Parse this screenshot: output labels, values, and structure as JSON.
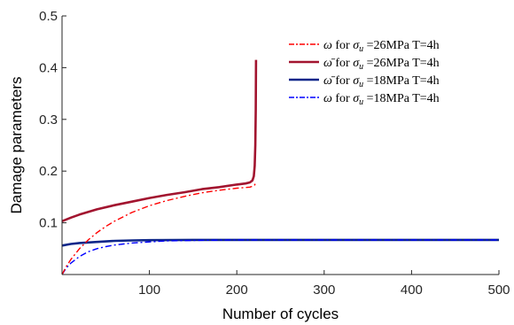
{
  "chart_data": {
    "type": "line",
    "title": "",
    "xlabel": "Number of cycles",
    "ylabel": "Damage parameters",
    "xlim": [
      0,
      500
    ],
    "ylim": [
      0,
      0.5
    ],
    "xticks": [
      100,
      200,
      300,
      400,
      500
    ],
    "yticks": [
      0.1,
      0.2,
      0.3,
      0.4,
      0.5
    ],
    "grid": false,
    "legend_position": "top-right",
    "series": [
      {
        "name": "ω for σ_u =26MPa T=4h",
        "legend_text": {
          "sym": "ω",
          "mid": " for ",
          "sigma": "σ",
          "sub": "u",
          "rest": " =26MPa T=4h"
        },
        "color": "#ff0000",
        "dash": "dashdot",
        "width": 1.4,
        "x": [
          0,
          5,
          10,
          20,
          30,
          40,
          50,
          60,
          80,
          100,
          120,
          140,
          160,
          180,
          200,
          215,
          220,
          222
        ],
        "y": [
          0.0,
          0.016,
          0.029,
          0.05,
          0.067,
          0.081,
          0.093,
          0.103,
          0.12,
          0.133,
          0.143,
          0.151,
          0.158,
          0.163,
          0.167,
          0.169,
          0.172,
          0.178
        ]
      },
      {
        "name": "ω̄ for σ_u =26MPa T=4h",
        "legend_text": {
          "sym": "ω̄",
          "mid": " for ",
          "sigma": "σ",
          "sub": "u",
          "rest": " =26MPa T=4h"
        },
        "color": "#a2142f",
        "dash": "solid",
        "width": 2.6,
        "x": [
          0,
          10,
          20,
          40,
          60,
          80,
          100,
          120,
          140,
          160,
          180,
          200,
          210,
          215,
          218,
          219.5,
          220.5,
          221.2,
          221.7,
          222
        ],
        "y": [
          0.103,
          0.11,
          0.116,
          0.126,
          0.134,
          0.141,
          0.148,
          0.154,
          0.159,
          0.165,
          0.169,
          0.174,
          0.176,
          0.178,
          0.182,
          0.19,
          0.21,
          0.25,
          0.32,
          0.415
        ]
      },
      {
        "name": "ω̄ for σ_u =18MPa T=4h",
        "legend_text": {
          "sym": "ω̄",
          "mid": " for ",
          "sigma": "σ",
          "sub": "u",
          "rest": " =18MPa T=4h"
        },
        "color": "#0d2689",
        "dash": "solid",
        "width": 2.6,
        "x": [
          0,
          10,
          20,
          40,
          60,
          80,
          100,
          150,
          200,
          300,
          400,
          500
        ],
        "y": [
          0.056,
          0.059,
          0.061,
          0.063,
          0.065,
          0.066,
          0.0665,
          0.067,
          0.067,
          0.067,
          0.067,
          0.067
        ]
      },
      {
        "name": "ω for σ_u =18MPa T=4h",
        "legend_text": {
          "sym": "ω",
          "mid": " for ",
          "sigma": "σ",
          "sub": "u",
          "rest": " =18MPa T=4h"
        },
        "color": "#0000ff",
        "dash": "dashdot",
        "width": 1.4,
        "x": [
          0,
          5,
          10,
          20,
          30,
          40,
          50,
          60,
          80,
          100,
          120,
          150,
          200,
          300,
          400,
          500
        ],
        "y": [
          0.0,
          0.013,
          0.022,
          0.035,
          0.044,
          0.05,
          0.054,
          0.057,
          0.061,
          0.063,
          0.065,
          0.066,
          0.067,
          0.067,
          0.067,
          0.067
        ]
      }
    ]
  }
}
